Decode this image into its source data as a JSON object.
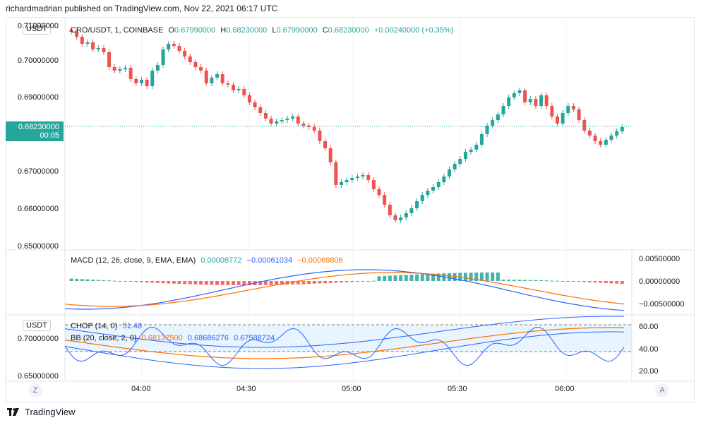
{
  "header": {
    "published": "richardmadrian published on TradingView.com, Nov 22, 2021 06:17 UTC"
  },
  "main_chart": {
    "currency_pill": "USDT",
    "symbol": "CRO/USDT, 1, COINBASE",
    "open_label": "O",
    "open": "0.67990000",
    "high_label": "H",
    "high": "0.68230000",
    "low_label": "L",
    "low": "0.67990000",
    "close_label": "C",
    "close": "0.68230000",
    "change": "+0.00240000 (+0.35%)",
    "price_axis": [
      "0.71000000",
      "0.70000000",
      "0.69000000",
      "0.68000000",
      "0.67000000",
      "0.66000000",
      "0.65000000"
    ],
    "last_price": "0.68230000",
    "countdown": "00:05",
    "up_color": "#26a69a",
    "down_color": "#ef5350"
  },
  "macd": {
    "title": "MACD (12, 26, close, 9, EMA, EMA)",
    "v1": "0.00008772",
    "v2": "−0.00061034",
    "v3": "−0.00069806",
    "axis": [
      "0.00500000",
      "0.00000000",
      "−0.00500000"
    ]
  },
  "bottom_pane": {
    "currency_pill": "USDT",
    "chop_title": "CHOP (14, 0)",
    "chop_value": "51.48",
    "bb_title": "BB (20, close, 2, 0)",
    "bb_basis": "0.68137500",
    "bb_upper": "0.68686276",
    "bb_lower": "0.67588724",
    "left_axis": [
      "0.70000000",
      "0.65000000"
    ],
    "right_axis": [
      "60.00",
      "40.00",
      "20.00"
    ]
  },
  "time_axis": [
    "04:00",
    "04:30",
    "05:00",
    "05:30",
    "06:00"
  ],
  "corners": {
    "left": "Z",
    "right": "A"
  },
  "footer": {
    "brand": "TradingView"
  }
}
